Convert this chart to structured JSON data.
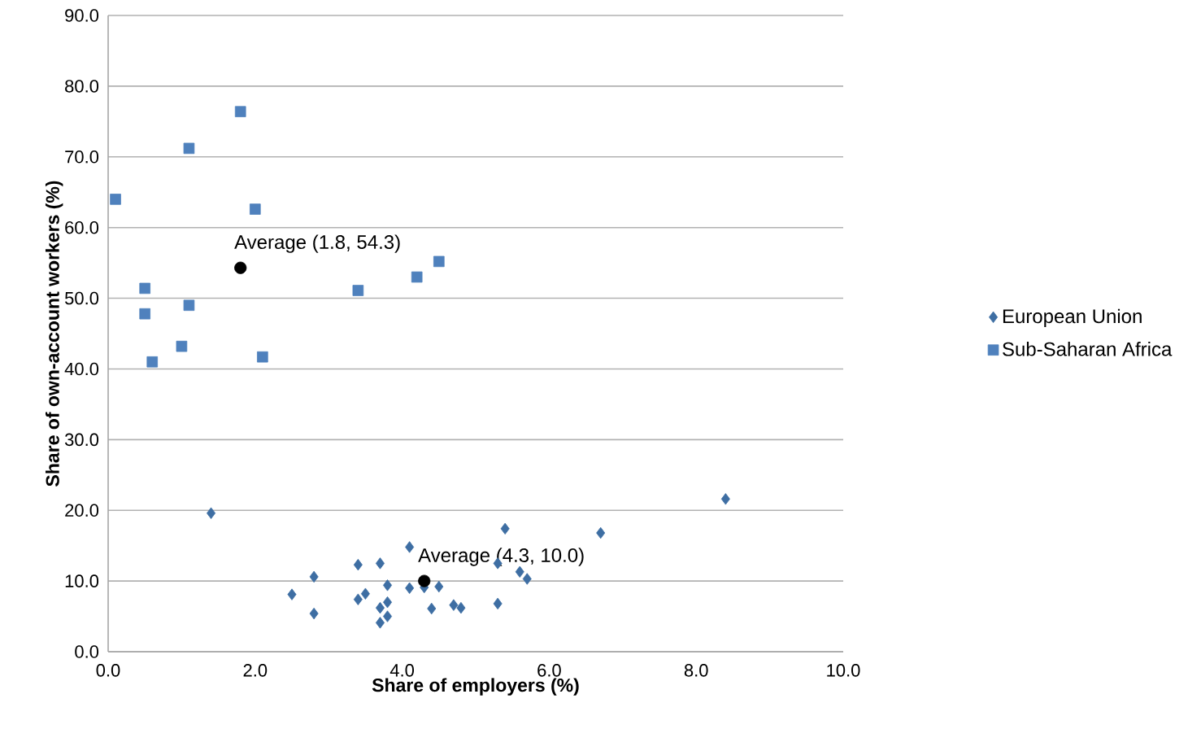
{
  "chart_data": {
    "type": "scatter",
    "xlabel": "Share of employers (%)",
    "ylabel": "Share of own-account workers (%)",
    "xlim": [
      0,
      10
    ],
    "ylim": [
      0,
      90
    ],
    "xticks": [
      {
        "value": 0,
        "label": "0.0"
      },
      {
        "value": 2,
        "label": "2.0"
      },
      {
        "value": 4,
        "label": "4.0"
      },
      {
        "value": 6,
        "label": "6.0"
      },
      {
        "value": 8,
        "label": "8.0"
      },
      {
        "value": 10,
        "label": "10.0"
      }
    ],
    "yticks": [
      {
        "value": 0,
        "label": "0.0"
      },
      {
        "value": 10,
        "label": "10.0"
      },
      {
        "value": 20,
        "label": "20.0"
      },
      {
        "value": 30,
        "label": "30.0"
      },
      {
        "value": 40,
        "label": "40.0"
      },
      {
        "value": 50,
        "label": "50.0"
      },
      {
        "value": 60,
        "label": "60.0"
      },
      {
        "value": 70,
        "label": "70.0"
      },
      {
        "value": 80,
        "label": "80.0"
      },
      {
        "value": 90,
        "label": "90.0"
      }
    ],
    "grid": "y",
    "legend": "right",
    "series": [
      {
        "name": "European Union",
        "color": "#3e6ea3",
        "marker": "diamond",
        "x": [
          5.4,
          4.1,
          3.4,
          3.7,
          5.3,
          2.8,
          5.6,
          5.7,
          3.8,
          4.1,
          4.3,
          4.5,
          2.5,
          3.5,
          3.4,
          3.7,
          3.8,
          4.4,
          4.7,
          4.8,
          5.3,
          2.8,
          3.8,
          3.7,
          1.4,
          6.7,
          8.4
        ],
        "values": [
          17.4,
          14.8,
          12.3,
          12.5,
          12.5,
          10.6,
          11.3,
          10.3,
          9.4,
          9.0,
          9.1,
          9.2,
          8.1,
          8.2,
          7.4,
          6.2,
          7.0,
          6.1,
          6.6,
          6.2,
          6.8,
          5.4,
          5.0,
          4.1,
          19.6,
          16.8,
          21.6
        ]
      },
      {
        "name": "Sub-Saharan Africa",
        "color": "#4f81bd",
        "marker": "square",
        "x": [
          0.1,
          1.1,
          1.8,
          2.0,
          0.5,
          0.5,
          1.1,
          0.6,
          1.0,
          2.1,
          3.4,
          4.2,
          4.5
        ],
        "values": [
          64.0,
          71.2,
          76.4,
          62.6,
          51.4,
          47.8,
          49.0,
          41.0,
          43.2,
          41.7,
          51.1,
          53.0,
          55.2
        ]
      },
      {
        "color": "#000000",
        "marker": "circle",
        "x": [
          1.8,
          4.3
        ],
        "values": [
          54.3,
          10.0
        ]
      }
    ],
    "annotations": [
      {
        "text": "Average (1.8, 54.3)",
        "x": 1.8,
        "y": 54.3
      },
      {
        "text": "Average (4.3, 10.0)",
        "x": 4.3,
        "y": 10.0
      }
    ]
  }
}
